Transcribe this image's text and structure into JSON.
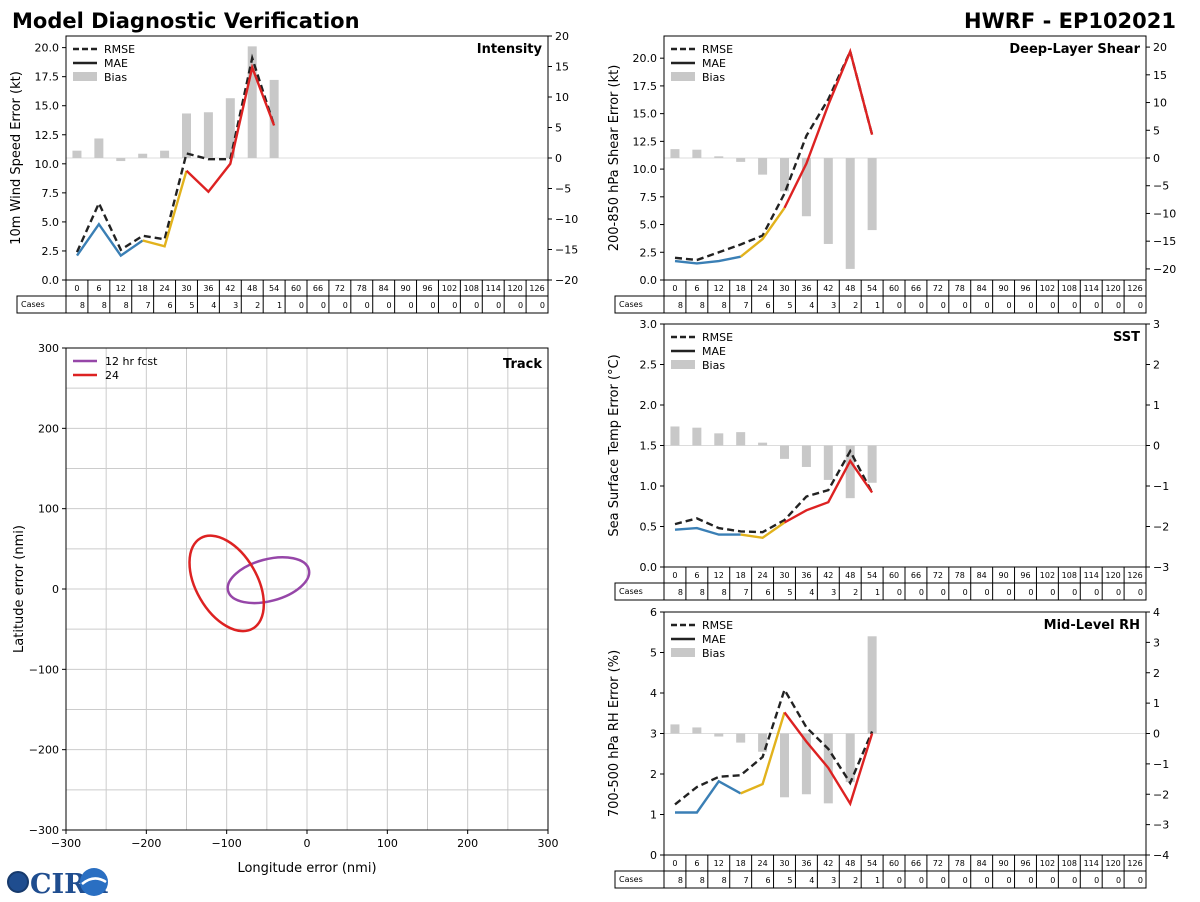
{
  "header": {
    "title": "Model Diagnostic Verification",
    "model_storm": "HWRF - EP102021"
  },
  "logo": {
    "text": "CIRA",
    "icon": "cira-logo-icon"
  },
  "legend_labels": {
    "rmse": "RMSE",
    "mae": "MAE",
    "bias": "Bias"
  },
  "colors": {
    "rmse": "#222222",
    "mae_segments": [
      "#3a7fb5",
      "#e2b21c",
      "#dd2222"
    ],
    "bias": "#c8c8c8",
    "track_12": "#9646a8",
    "track_24": "#dd2222",
    "grid": "#cccccc"
  },
  "table": {
    "cases_label": "Cases",
    "hours": [
      "0",
      "6",
      "12",
      "18",
      "24",
      "30",
      "36",
      "42",
      "48",
      "54",
      "60",
      "66",
      "72",
      "78",
      "84",
      "90",
      "96",
      "102",
      "108",
      "114",
      "120",
      "126"
    ],
    "cases": [
      "8",
      "8",
      "8",
      "7",
      "6",
      "5",
      "4",
      "3",
      "2",
      "1",
      "0",
      "0",
      "0",
      "0",
      "0",
      "0",
      "0",
      "0",
      "0",
      "0",
      "0",
      "0"
    ]
  },
  "chart_data": [
    {
      "type": "line",
      "title": "Intensity",
      "ylabel": "10m Wind Speed Error (kt)",
      "x": [
        0,
        6,
        12,
        18,
        24,
        30,
        36,
        42,
        48,
        54
      ],
      "ylim": [
        0,
        21
      ],
      "yticks": [
        "0.0",
        "2.5",
        "5.0",
        "7.5",
        "10.0",
        "12.5",
        "15.0",
        "17.5",
        "20.0"
      ],
      "y2lim": [
        -20,
        20
      ],
      "y2ticks": [
        "−20",
        "−15",
        "−10",
        "−5",
        "0",
        "5",
        "10",
        "15",
        "20"
      ],
      "series": [
        {
          "name": "RMSE",
          "values": [
            2.4,
            6.6,
            2.6,
            3.8,
            3.5,
            10.9,
            10.4,
            10.4,
            19.1,
            13.3
          ]
        },
        {
          "name": "MAE",
          "values": [
            2.1,
            4.8,
            2.1,
            3.4,
            2.9,
            9.4,
            7.6,
            10.0,
            18.3,
            13.3
          ]
        },
        {
          "name": "Bias",
          "values": [
            1.2,
            3.2,
            -0.5,
            0.7,
            1.2,
            7.3,
            7.5,
            9.8,
            18.3,
            12.8
          ]
        }
      ]
    },
    {
      "type": "line",
      "title": "Deep-Layer Shear",
      "ylabel": "200-850 hPa Shear Error (kt)",
      "x": [
        0,
        6,
        12,
        18,
        24,
        30,
        36,
        42,
        48,
        54
      ],
      "ylim": [
        0,
        22
      ],
      "yticks": [
        "0.0",
        "2.5",
        "5.0",
        "7.5",
        "10.0",
        "12.5",
        "15.0",
        "17.5",
        "20.0"
      ],
      "y2lim": [
        -22,
        22
      ],
      "y2ticks": [
        "−20",
        "−15",
        "−10",
        "−5",
        "0",
        "5",
        "10",
        "15",
        "20"
      ],
      "series": [
        {
          "name": "RMSE",
          "values": [
            2.0,
            1.8,
            2.5,
            3.2,
            4.0,
            7.8,
            13.0,
            16.3,
            20.6,
            13.1
          ]
        },
        {
          "name": "MAE",
          "values": [
            1.7,
            1.5,
            1.7,
            2.1,
            3.7,
            6.5,
            10.5,
            15.8,
            20.6,
            13.1
          ]
        },
        {
          "name": "Bias",
          "values": [
            1.6,
            1.5,
            0.3,
            -0.7,
            -3.0,
            -6.0,
            -10.5,
            -15.5,
            -20.0,
            -13.0
          ]
        }
      ]
    },
    {
      "type": "line",
      "title": "SST",
      "ylabel": "Sea Surface Temp Error (°C)",
      "x": [
        0,
        6,
        12,
        18,
        24,
        30,
        36,
        42,
        48,
        54
      ],
      "ylim": [
        0,
        3
      ],
      "yticks": [
        "0.0",
        "0.5",
        "1.0",
        "1.5",
        "2.0",
        "2.5",
        "3.0"
      ],
      "y2lim": [
        -3,
        3
      ],
      "y2ticks": [
        "−3",
        "−2",
        "−1",
        "0",
        "1",
        "2",
        "3"
      ],
      "series": [
        {
          "name": "RMSE",
          "values": [
            0.53,
            0.6,
            0.48,
            0.44,
            0.43,
            0.58,
            0.87,
            0.95,
            1.43,
            0.92
          ]
        },
        {
          "name": "MAE",
          "values": [
            0.46,
            0.48,
            0.4,
            0.4,
            0.36,
            0.55,
            0.7,
            0.8,
            1.31,
            0.92
          ]
        },
        {
          "name": "Bias",
          "values": [
            0.47,
            0.44,
            0.3,
            0.33,
            0.07,
            -0.33,
            -0.53,
            -0.85,
            -1.3,
            -0.92
          ]
        }
      ]
    },
    {
      "type": "line",
      "title": "Mid-Level RH",
      "ylabel": "700-500 hPa RH Error (%)",
      "x": [
        0,
        6,
        12,
        18,
        24,
        30,
        36,
        42,
        48,
        54
      ],
      "ylim": [
        0,
        6
      ],
      "yticks": [
        "0",
        "1",
        "2",
        "3",
        "4",
        "5",
        "6"
      ],
      "y2lim": [
        -4,
        4
      ],
      "y2ticks": [
        "−4",
        "−3",
        "−2",
        "−1",
        "0",
        "1",
        "2",
        "3",
        "4"
      ],
      "series": [
        {
          "name": "RMSE",
          "values": [
            1.25,
            1.68,
            1.93,
            1.97,
            2.42,
            4.08,
            3.15,
            2.62,
            1.78,
            3.05
          ]
        },
        {
          "name": "MAE",
          "values": [
            1.05,
            1.05,
            1.82,
            1.52,
            1.75,
            3.52,
            2.8,
            2.15,
            1.27,
            3.0
          ]
        },
        {
          "name": "Bias",
          "values": [
            0.3,
            0.2,
            -0.1,
            -0.3,
            -0.6,
            -2.1,
            -2.0,
            -2.3,
            -1.6,
            3.2
          ]
        }
      ]
    },
    {
      "type": "scatter",
      "title": "Track",
      "xlabel": "Longitude error (nmi)",
      "ylabel": "Latitude error (nmi)",
      "xlim": [
        -300,
        300
      ],
      "ylim": [
        -300,
        300
      ],
      "xticks": [
        "−300",
        "−200",
        "−100",
        "0",
        "100",
        "200",
        "300"
      ],
      "yticks": [
        "−300",
        "−200",
        "−100",
        "0",
        "100",
        "200",
        "300"
      ],
      "series": [
        {
          "name": "12 hr fcst",
          "center": [
            -48,
            11
          ],
          "semi_axes": [
            52,
            26
          ],
          "angle_deg": -15
        },
        {
          "name": "24",
          "center": [
            -100,
            7
          ],
          "semi_axes": [
            65,
            38
          ],
          "angle_deg": 60
        }
      ]
    }
  ]
}
